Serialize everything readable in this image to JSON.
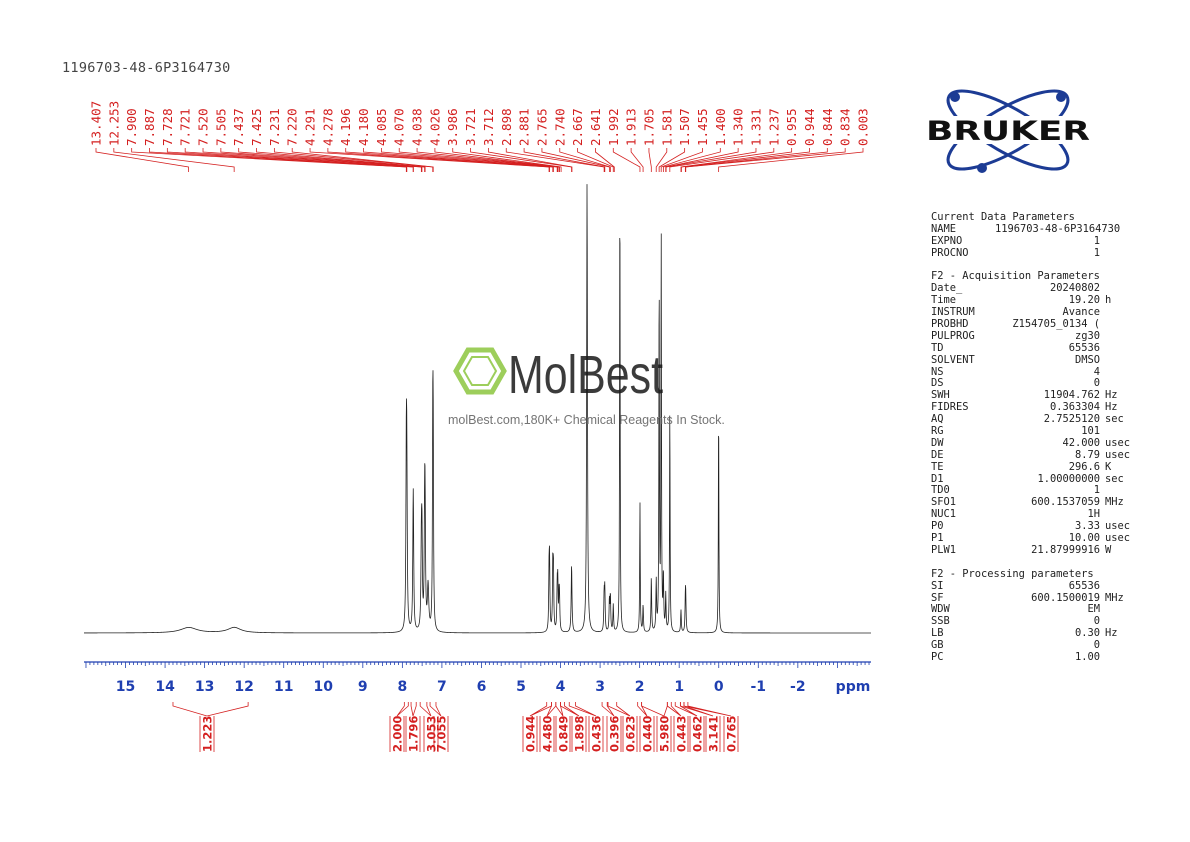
{
  "sample_id": "1196703-48-6P3164730",
  "logo_text": "BRUKER",
  "watermark": {
    "brand": "MolBest",
    "subtitle": "molBest.com,180K+ Chemical Reagents In Stock."
  },
  "colors": {
    "peak_labels": "#d42020",
    "axis": "#1f3fb0",
    "spectrum": "#222222",
    "logo": "#1c3b94",
    "watermark_green": "#8cc63f"
  },
  "params": {
    "sec1_title": "Current Data Parameters",
    "sec1": [
      {
        "k": "NAME",
        "v": "1196703-48-6P3164730",
        "u": ""
      },
      {
        "k": "EXPNO",
        "v": "1",
        "u": ""
      },
      {
        "k": "PROCNO",
        "v": "1",
        "u": ""
      }
    ],
    "sec2_title": "F2 - Acquisition Parameters",
    "sec2": [
      {
        "k": "Date_",
        "v": "20240802",
        "u": ""
      },
      {
        "k": "Time",
        "v": "19.20",
        "u": "h"
      },
      {
        "k": "INSTRUM",
        "v": "Avance",
        "u": ""
      },
      {
        "k": "PROBHD",
        "v": "Z154705_0134 (",
        "u": ""
      },
      {
        "k": "PULPROG",
        "v": "zg30",
        "u": ""
      },
      {
        "k": "TD",
        "v": "65536",
        "u": ""
      },
      {
        "k": "SOLVENT",
        "v": "DMSO",
        "u": ""
      },
      {
        "k": "NS",
        "v": "4",
        "u": ""
      },
      {
        "k": "DS",
        "v": "0",
        "u": ""
      },
      {
        "k": "SWH",
        "v": "11904.762",
        "u": "Hz"
      },
      {
        "k": "FIDRES",
        "v": "0.363304",
        "u": "Hz"
      },
      {
        "k": "AQ",
        "v": "2.7525120",
        "u": "sec"
      },
      {
        "k": "RG",
        "v": "101",
        "u": ""
      },
      {
        "k": "DW",
        "v": "42.000",
        "u": "usec"
      },
      {
        "k": "DE",
        "v": "8.79",
        "u": "usec"
      },
      {
        "k": "TE",
        "v": "296.6",
        "u": "K"
      },
      {
        "k": "D1",
        "v": "1.00000000",
        "u": "sec"
      },
      {
        "k": "TD0",
        "v": "1",
        "u": ""
      },
      {
        "k": "SFO1",
        "v": "600.1537059",
        "u": "MHz"
      },
      {
        "k": "NUC1",
        "v": "1H",
        "u": ""
      },
      {
        "k": "P0",
        "v": "3.33",
        "u": "usec"
      },
      {
        "k": "P1",
        "v": "10.00",
        "u": "usec"
      },
      {
        "k": "PLW1",
        "v": "21.87999916",
        "u": "W"
      }
    ],
    "sec3_title": "F2 - Processing parameters",
    "sec3": [
      {
        "k": "SI",
        "v": "65536",
        "u": ""
      },
      {
        "k": "SF",
        "v": "600.1500019",
        "u": "MHz"
      },
      {
        "k": "WDW",
        "v": "EM",
        "u": ""
      },
      {
        "k": "SSB",
        "v": "0",
        "u": ""
      },
      {
        "k": "LB",
        "v": "0.30",
        "u": "Hz"
      },
      {
        "k": "GB",
        "v": "0",
        "u": ""
      },
      {
        "k": "PC",
        "v": "1.00",
        "u": ""
      }
    ]
  },
  "chart_data": {
    "type": "line",
    "xlabel": "ppm",
    "xlim": [
      16.05,
      -3.85
    ],
    "x_reversed": true,
    "x_ticks": [
      15,
      14,
      13,
      12,
      11,
      10,
      9,
      8,
      7,
      6,
      5,
      4,
      3,
      2,
      1,
      0,
      -1,
      -2
    ],
    "peak_labels": [
      "13.407",
      "12.253",
      "7.900",
      "7.887",
      "7.728",
      "7.721",
      "7.520",
      "7.505",
      "7.437",
      "7.425",
      "7.231",
      "7.220",
      "4.291",
      "4.278",
      "4.196",
      "4.180",
      "4.085",
      "4.070",
      "4.038",
      "4.026",
      "3.986",
      "3.721",
      "3.712",
      "2.898",
      "2.881",
      "2.765",
      "2.740",
      "2.667",
      "2.641",
      "1.992",
      "1.913",
      "1.705",
      "1.581",
      "1.507",
      "1.455",
      "1.400",
      "1.340",
      "1.331",
      "1.237",
      "0.955",
      "0.944",
      "0.844",
      "0.834",
      "0.003"
    ],
    "integrals": [
      {
        "range": [
          13.8,
          11.9
        ],
        "value": "1.223"
      },
      {
        "range": [
          7.95,
          7.85
        ],
        "value": "2.000"
      },
      {
        "range": [
          7.78,
          7.65
        ],
        "value": "1.796"
      },
      {
        "range": [
          7.55,
          7.38
        ],
        "value": "3.053"
      },
      {
        "range": [
          7.3,
          7.15
        ],
        "value": "7.055"
      },
      {
        "range": [
          4.35,
          4.23
        ],
        "value": "0.944"
      },
      {
        "range": [
          4.23,
          4.12
        ],
        "value": "4.480"
      },
      {
        "range": [
          4.12,
          4.0
        ],
        "value": "0.849"
      },
      {
        "range": [
          4.0,
          3.9
        ],
        "value": "1.898"
      },
      {
        "range": [
          3.78,
          3.62
        ],
        "value": "0.436"
      },
      {
        "range": [
          2.95,
          2.82
        ],
        "value": "0.396"
      },
      {
        "range": [
          2.8,
          2.58
        ],
        "value": "0.623"
      },
      {
        "range": [
          2.05,
          1.95
        ],
        "value": "0.440"
      },
      {
        "range": [
          1.95,
          1.3
        ],
        "value": "5.980"
      },
      {
        "range": [
          1.3,
          1.2
        ],
        "value": "0.443"
      },
      {
        "range": [
          1.1,
          0.97
        ],
        "value": "0.462"
      },
      {
        "range": [
          0.97,
          0.88
        ],
        "value": "3.141"
      },
      {
        "range": [
          0.88,
          0.78
        ],
        "value": "0.765"
      }
    ],
    "peaks": [
      {
        "ppm": 13.4,
        "h": 0.012,
        "w": 0.25
      },
      {
        "ppm": 12.25,
        "h": 0.012,
        "w": 0.2
      },
      {
        "ppm": 7.9,
        "h": 0.36,
        "w": 0.012
      },
      {
        "ppm": 7.887,
        "h": 0.3,
        "w": 0.012
      },
      {
        "ppm": 7.728,
        "h": 0.18,
        "w": 0.012
      },
      {
        "ppm": 7.721,
        "h": 0.16,
        "w": 0.012
      },
      {
        "ppm": 7.52,
        "h": 0.17,
        "w": 0.012
      },
      {
        "ppm": 7.505,
        "h": 0.2,
        "w": 0.012
      },
      {
        "ppm": 7.437,
        "h": 0.23,
        "w": 0.012
      },
      {
        "ppm": 7.425,
        "h": 0.22,
        "w": 0.012
      },
      {
        "ppm": 7.35,
        "h": 0.1,
        "w": 0.02
      },
      {
        "ppm": 7.231,
        "h": 0.4,
        "w": 0.01
      },
      {
        "ppm": 7.22,
        "h": 0.35,
        "w": 0.01
      },
      {
        "ppm": 4.291,
        "h": 0.12,
        "w": 0.01
      },
      {
        "ppm": 4.278,
        "h": 0.14,
        "w": 0.01
      },
      {
        "ppm": 4.196,
        "h": 0.14,
        "w": 0.01
      },
      {
        "ppm": 4.18,
        "h": 0.13,
        "w": 0.01
      },
      {
        "ppm": 4.085,
        "h": 0.09,
        "w": 0.01
      },
      {
        "ppm": 4.07,
        "h": 0.1,
        "w": 0.01
      },
      {
        "ppm": 4.038,
        "h": 0.07,
        "w": 0.01
      },
      {
        "ppm": 4.026,
        "h": 0.06,
        "w": 0.01
      },
      {
        "ppm": 3.721,
        "h": 0.15,
        "w": 0.012
      },
      {
        "ppm": 3.33,
        "h": 1.0,
        "w": 0.012
      },
      {
        "ppm": 2.898,
        "h": 0.08,
        "w": 0.01
      },
      {
        "ppm": 2.881,
        "h": 0.09,
        "w": 0.01
      },
      {
        "ppm": 2.765,
        "h": 0.07,
        "w": 0.01
      },
      {
        "ppm": 2.74,
        "h": 0.08,
        "w": 0.01
      },
      {
        "ppm": 2.667,
        "h": 0.06,
        "w": 0.01
      },
      {
        "ppm": 2.5,
        "h": 1.0,
        "w": 0.008
      },
      {
        "ppm": 1.992,
        "h": 0.29,
        "w": 0.008
      },
      {
        "ppm": 1.913,
        "h": 0.06,
        "w": 0.01
      },
      {
        "ppm": 1.705,
        "h": 0.12,
        "w": 0.01
      },
      {
        "ppm": 1.581,
        "h": 0.11,
        "w": 0.01
      },
      {
        "ppm": 1.507,
        "h": 0.79,
        "w": 0.008
      },
      {
        "ppm": 1.455,
        "h": 0.88,
        "w": 0.008
      },
      {
        "ppm": 1.4,
        "h": 0.12,
        "w": 0.01
      },
      {
        "ppm": 1.34,
        "h": 0.08,
        "w": 0.01
      },
      {
        "ppm": 1.237,
        "h": 0.5,
        "w": 0.008
      },
      {
        "ppm": 0.955,
        "h": 0.05,
        "w": 0.01
      },
      {
        "ppm": 0.844,
        "h": 0.07,
        "w": 0.01
      },
      {
        "ppm": 0.834,
        "h": 0.06,
        "w": 0.01
      },
      {
        "ppm": 0.003,
        "h": 0.5,
        "w": 0.008
      }
    ]
  }
}
